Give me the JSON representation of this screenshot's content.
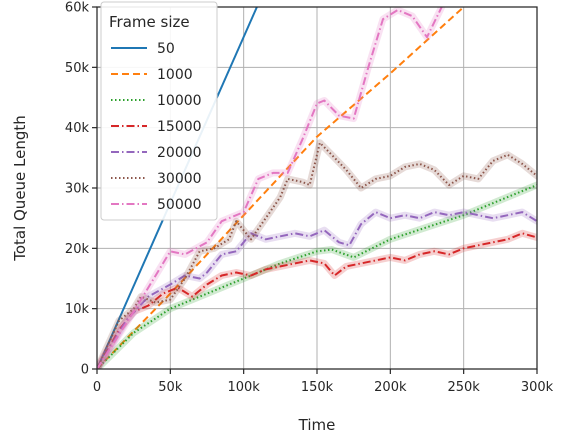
{
  "chart_data": {
    "type": "line",
    "xlabel": "Time",
    "ylabel": "Total Queue Length",
    "xlim": [
      0,
      300000
    ],
    "ylim": [
      0,
      60000
    ],
    "x_ticks": [
      0,
      50000,
      100000,
      150000,
      200000,
      250000,
      300000
    ],
    "x_tick_labels": [
      "0",
      "50k",
      "100k",
      "150k",
      "200k",
      "250k",
      "300k"
    ],
    "y_ticks": [
      0,
      10000,
      20000,
      30000,
      40000,
      50000,
      60000
    ],
    "y_tick_labels": [
      "0",
      "10k",
      "20k",
      "30k",
      "40k",
      "50k",
      "60k"
    ],
    "grid": true,
    "legend": {
      "title": "Frame size",
      "placement": "top-left"
    },
    "series": [
      {
        "name": "50",
        "color": "#1f77b4",
        "dash": "solid",
        "x": [
          0,
          109000
        ],
        "y": [
          0,
          60000
        ]
      },
      {
        "name": "1000",
        "color": "#ff7f0e",
        "dash": "dashed",
        "x": [
          0,
          50000,
          100000,
          150000,
          200000,
          250000
        ],
        "y": [
          0,
          12500,
          25500,
          38500,
          49000,
          60000
        ]
      },
      {
        "name": "10000",
        "color": "#2ca02c",
        "dash": "dotted",
        "x": [
          0,
          25000,
          50000,
          75000,
          100000,
          125000,
          150000,
          160000,
          175000,
          200000,
          225000,
          250000,
          275000,
          300000
        ],
        "y": [
          0,
          6000,
          10000,
          12500,
          15000,
          17500,
          19500,
          19800,
          18500,
          21500,
          23500,
          25500,
          28000,
          30500
        ]
      },
      {
        "name": "15000",
        "color": "#d62728",
        "dash": "dashdot",
        "x": [
          0,
          15000,
          25000,
          35000,
          45000,
          55000,
          65000,
          75000,
          85000,
          95000,
          105000,
          115000,
          125000,
          135000,
          145000,
          155000,
          162000,
          170000,
          180000,
          190000,
          200000,
          210000,
          220000,
          230000,
          240000,
          250000,
          260000,
          270000,
          280000,
          290000,
          300000
        ],
        "y": [
          0,
          6500,
          9500,
          10500,
          12500,
          13500,
          12000,
          14000,
          15500,
          16000,
          15500,
          16500,
          17000,
          17500,
          18000,
          17500,
          15500,
          17000,
          17500,
          18000,
          18500,
          18000,
          19000,
          19500,
          19000,
          20000,
          20500,
          21000,
          21500,
          22500,
          21800
        ]
      },
      {
        "name": "20000",
        "color": "#9467bd",
        "dash": "dashdot",
        "x": [
          0,
          20000,
          35000,
          50000,
          60000,
          70000,
          75000,
          85000,
          95000,
          105000,
          115000,
          125000,
          135000,
          145000,
          155000,
          165000,
          172000,
          180000,
          190000,
          200000,
          210000,
          220000,
          230000,
          240000,
          250000,
          260000,
          270000,
          280000,
          290000,
          300000
        ],
        "y": [
          0,
          8000,
          12000,
          14000,
          15500,
          15000,
          16000,
          19000,
          19500,
          22500,
          21500,
          22000,
          22500,
          22000,
          23000,
          21000,
          20500,
          24000,
          26000,
          25000,
          25500,
          25000,
          26000,
          25500,
          26000,
          25500,
          25000,
          25500,
          26000,
          24500
        ]
      },
      {
        "name": "30000",
        "color": "#8c564b",
        "dash": "dotted",
        "x": [
          0,
          15000,
          25000,
          30000,
          40000,
          50000,
          60000,
          70000,
          80000,
          90000,
          95000,
          105000,
          115000,
          125000,
          130000,
          140000,
          145000,
          152000,
          160000,
          170000,
          180000,
          190000,
          200000,
          210000,
          220000,
          230000,
          240000,
          250000,
          260000,
          270000,
          280000,
          290000,
          300000
        ],
        "y": [
          0,
          8000,
          10000,
          12000,
          11000,
          11500,
          15000,
          19500,
          20000,
          21500,
          24500,
          21500,
          25000,
          28500,
          31500,
          31000,
          30500,
          37500,
          35500,
          33000,
          30000,
          31500,
          32000,
          33500,
          34000,
          33000,
          30500,
          32000,
          31500,
          34500,
          35500,
          34000,
          32000
        ]
      },
      {
        "name": "50000",
        "color": "#e377c2",
        "dash": "dashdot",
        "x": [
          0,
          25000,
          50000,
          60000,
          75000,
          85000,
          100000,
          110000,
          120000,
          130000,
          140000,
          150000,
          155000,
          165000,
          175000,
          185000,
          195000,
          205000,
          215000,
          225000,
          235000
        ],
        "y": [
          0,
          9500,
          19500,
          19000,
          21000,
          24500,
          26000,
          31500,
          32500,
          32500,
          38000,
          44000,
          44500,
          42000,
          41500,
          50000,
          58000,
          59500,
          58500,
          55000,
          60000
        ]
      }
    ]
  }
}
